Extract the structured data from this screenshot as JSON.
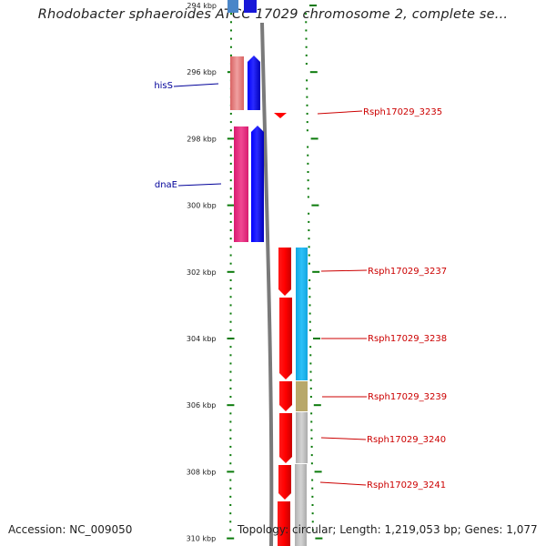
{
  "title": "Rhodobacter sphaeroides ATCC 17029 chromosome 2, complete se...",
  "footer": {
    "accession": "Accession: NC_009050",
    "summary": "Topology: circular; Length: 1,219,053 bp; Genes: 1,077"
  },
  "scale": {
    "unit": "kbp",
    "ticks": [
      {
        "label": "294 kbp",
        "kbp": 294
      },
      {
        "label": "296 kbp",
        "kbp": 296
      },
      {
        "label": "298 kbp",
        "kbp": 298
      },
      {
        "label": "300 kbp",
        "kbp": 300
      },
      {
        "label": "302 kbp",
        "kbp": 302
      },
      {
        "label": "304 kbp",
        "kbp": 304
      },
      {
        "label": "306 kbp",
        "kbp": 306
      },
      {
        "label": "308 kbp",
        "kbp": 308
      },
      {
        "label": "310 kbp",
        "kbp": 310
      }
    ]
  },
  "genes": [
    {
      "name": "hisS",
      "strand": "left",
      "color": "#000099"
    },
    {
      "name": "dnaE",
      "strand": "left",
      "color": "#000099"
    },
    {
      "name": "Rsph17029_3235",
      "strand": "right",
      "color": "#cc0000"
    },
    {
      "name": "Rsph17029_3237",
      "strand": "right",
      "color": "#cc0000"
    },
    {
      "name": "Rsph17029_3238",
      "strand": "right",
      "color": "#cc0000"
    },
    {
      "name": "Rsph17029_3239",
      "strand": "right",
      "color": "#cc0000"
    },
    {
      "name": "Rsph17029_3240",
      "strand": "right",
      "color": "#cc0000"
    },
    {
      "name": "Rsph17029_3241",
      "strand": "right",
      "color": "#cc0000"
    }
  ],
  "colors": {
    "tick_green": "#0a7a0a",
    "backbone": "#7a7a7a",
    "forward_gene": "#ff0000",
    "reverse_gene": "#0000ff",
    "cog_blue": "#1fb4ee",
    "cog_olive": "#b8a86a",
    "cog_gray": "#bdbdbd",
    "cog_pink": "#e8347e",
    "cog_salmon": "#e67c7c"
  }
}
